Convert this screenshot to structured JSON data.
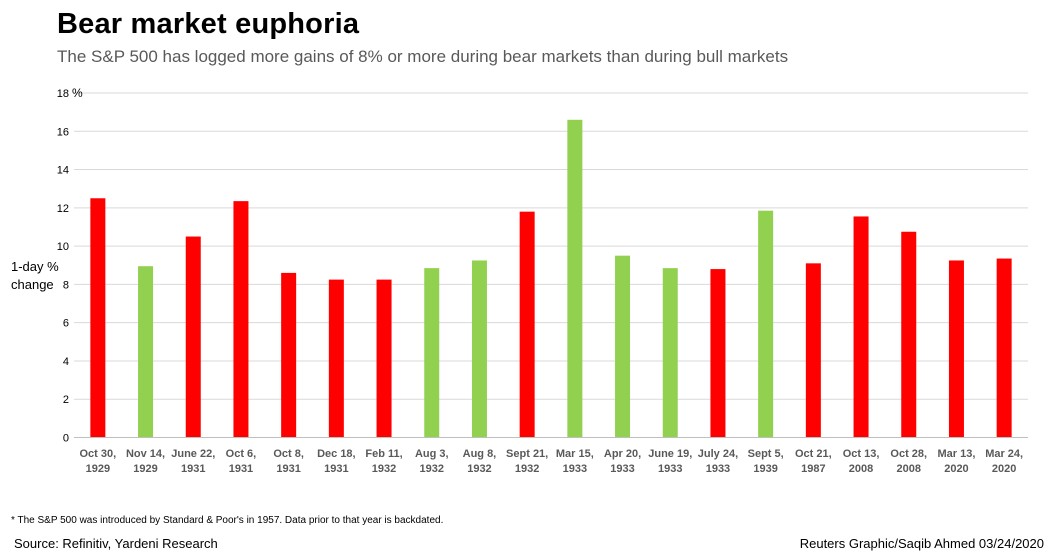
{
  "title": "Bear market euphoria",
  "subtitle": "The S&P 500 has logged more gains of 8% or more during bear markets than during bull markets",
  "footnote": "* The S&P 500 was introduced by Standard & Poor's in 1957. Data prior to that year is backdated.",
  "source": "Source: Refinitiv, Yardeni Research",
  "credit": "Reuters Graphic/Saqib Ahmed 03/24/2020",
  "colors": {
    "bear": "#ff0000",
    "bull": "#92d050",
    "grid": "#d9d9d9",
    "axis_text": "#595959"
  },
  "chart_data": {
    "type": "bar",
    "ylabel_lines": [
      "1-day %",
      "change"
    ],
    "unit_label": "%",
    "ylim": [
      0,
      18
    ],
    "yticks": [
      0,
      2,
      4,
      6,
      8,
      10,
      12,
      14,
      16,
      18
    ],
    "grid": true,
    "categories": [
      [
        "Oct  30,",
        "1929"
      ],
      [
        "Nov 14,",
        "1929"
      ],
      [
        "June 22,",
        "1931"
      ],
      [
        "Oct 6,",
        "1931"
      ],
      [
        "Oct 8,",
        "1931"
      ],
      [
        "Dec 18,",
        "1931"
      ],
      [
        "Feb 11,",
        "1932"
      ],
      [
        "Aug 3,",
        "1932"
      ],
      [
        "Aug 8,",
        "1932"
      ],
      [
        "Sept 21,",
        "1932"
      ],
      [
        "Mar 15,",
        "1933"
      ],
      [
        "Apr 20,",
        "1933"
      ],
      [
        "June 19,",
        "1933"
      ],
      [
        "July 24,",
        "1933"
      ],
      [
        "Sept 5,",
        "1939"
      ],
      [
        "Oct 21,",
        "1987"
      ],
      [
        "Oct 13,",
        "2008"
      ],
      [
        "Oct 28,",
        "2008"
      ],
      [
        "Mar 13,",
        "2020"
      ],
      [
        "Mar 24,",
        "2020"
      ]
    ],
    "values": [
      12.5,
      8.95,
      10.5,
      12.35,
      8.6,
      8.25,
      8.25,
      8.85,
      9.25,
      11.8,
      16.6,
      9.5,
      8.85,
      8.8,
      11.85,
      9.1,
      11.55,
      10.75,
      9.25,
      9.35
    ],
    "market": [
      "bear",
      "bull",
      "bear",
      "bear",
      "bear",
      "bear",
      "bear",
      "bull",
      "bull",
      "bear",
      "bull",
      "bull",
      "bull",
      "bear",
      "bull",
      "bear",
      "bear",
      "bear",
      "bear",
      "bear"
    ]
  }
}
